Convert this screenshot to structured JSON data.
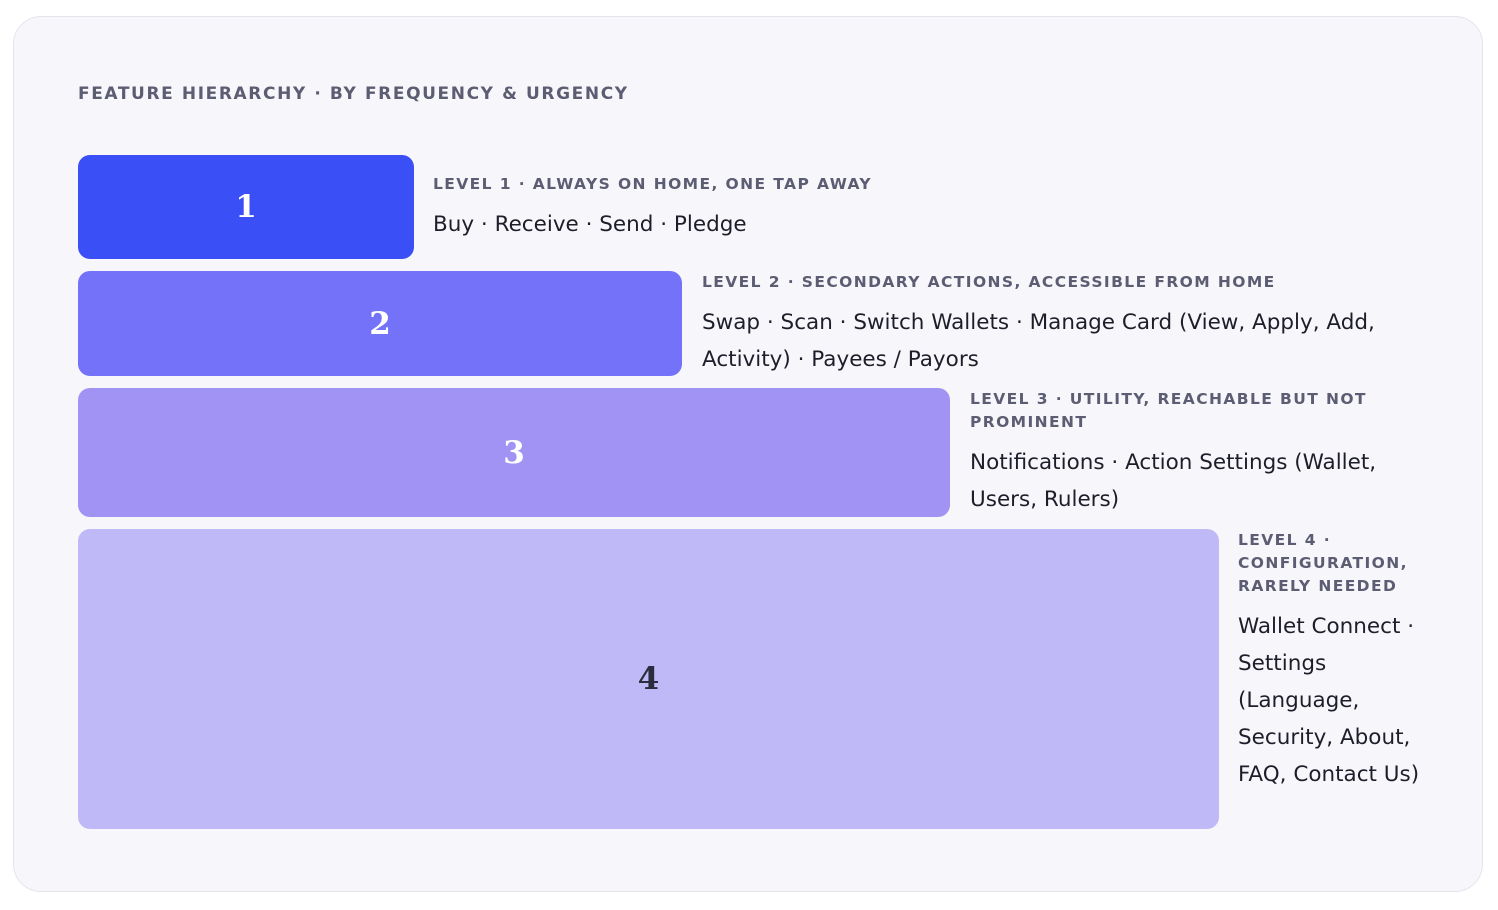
{
  "heading": "FEATURE HIERARCHY · BY FREQUENCY & URGENCY",
  "levels": [
    {
      "number": "1",
      "title": "LEVEL 1 · ALWAYS ON HOME, ONE TAP AWAY",
      "features": "Buy · Receive · Send · Pledge",
      "color": "#3b4ff6"
    },
    {
      "number": "2",
      "title": "LEVEL 2 · SECONDARY ACTIONS, ACCESSIBLE FROM HOME",
      "features": "Swap · Scan · Switch Wallets · Manage Card (View, Apply, Add, Activity) · Payees / Payors",
      "color": "#7372f8"
    },
    {
      "number": "3",
      "title": "LEVEL 3 · UTILITY, REACHABLE BUT NOT PROMINENT",
      "features": "Notifications · Action Settings (Wallet, Users, Rulers)",
      "color": "#a093f3"
    },
    {
      "number": "4",
      "title": "LEVEL 4 · CONFIGURATION, RARELY NEEDED",
      "features": "Wallet Connect · Settings (Language, Security, About, FAQ, Contact Us)",
      "color": "#c0b9f7"
    }
  ]
}
